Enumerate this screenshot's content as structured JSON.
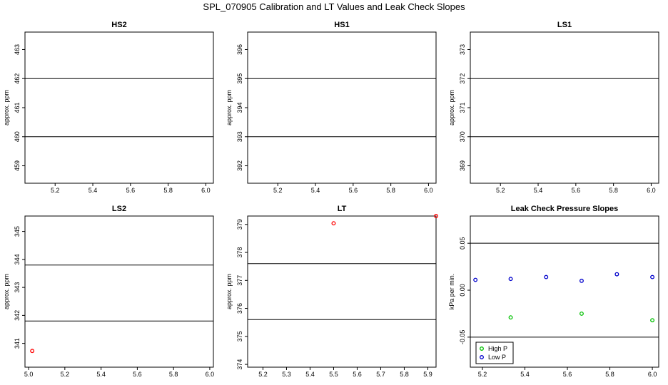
{
  "title": "SPL_070905  Calibration and LT Values and Leak Check Slopes",
  "chart_data": [
    {
      "type": "scatter",
      "title": "HS2",
      "ylabel": "approx. ppm",
      "xlim": [
        5.04,
        6.04
      ],
      "ylim": [
        458.4,
        463.6
      ],
      "xticks": [
        5.2,
        5.4,
        5.6,
        5.8,
        6.0
      ],
      "xtick_labels": [
        "5.2",
        "5.4",
        "5.6",
        "5.8",
        "6.0"
      ],
      "yticks": [
        459,
        460,
        461,
        462,
        463
      ],
      "ytick_labels": [
        "459",
        "460",
        "461",
        "462",
        "463"
      ],
      "hlines": [
        460.0,
        462.0
      ],
      "series": []
    },
    {
      "type": "scatter",
      "title": "HS1",
      "ylabel": "approx. ppm",
      "xlim": [
        5.04,
        6.04
      ],
      "ylim": [
        391.4,
        396.6
      ],
      "xticks": [
        5.2,
        5.4,
        5.6,
        5.8,
        6.0
      ],
      "xtick_labels": [
        "5.2",
        "5.4",
        "5.6",
        "5.8",
        "6.0"
      ],
      "yticks": [
        392,
        393,
        394,
        395,
        396
      ],
      "ytick_labels": [
        "392",
        "393",
        "394",
        "395",
        "396"
      ],
      "hlines": [
        393.0,
        395.0
      ],
      "series": []
    },
    {
      "type": "scatter",
      "title": "LS1",
      "ylabel": "approx. ppm",
      "xlim": [
        5.04,
        6.04
      ],
      "ylim": [
        368.4,
        373.6
      ],
      "xticks": [
        5.2,
        5.4,
        5.6,
        5.8,
        6.0
      ],
      "xtick_labels": [
        "5.2",
        "5.4",
        "5.6",
        "5.8",
        "6.0"
      ],
      "yticks": [
        369,
        370,
        371,
        372,
        373
      ],
      "ytick_labels": [
        "369",
        "370",
        "371",
        "372",
        "373"
      ],
      "hlines": [
        370.0,
        372.0
      ],
      "series": []
    },
    {
      "type": "scatter",
      "title": "LS2",
      "ylabel": "approx. ppm",
      "xlim": [
        4.98,
        6.02
      ],
      "ylim": [
        340.15,
        345.55
      ],
      "xticks": [
        5.0,
        5.2,
        5.4,
        5.6,
        5.8,
        6.0
      ],
      "xtick_labels": [
        "5.0",
        "5.2",
        "5.4",
        "5.6",
        "5.8",
        "6.0"
      ],
      "yticks": [
        341,
        342,
        343,
        344,
        345
      ],
      "ytick_labels": [
        "341",
        "342",
        "343",
        "344",
        "345"
      ],
      "hlines": [
        341.8,
        343.8
      ],
      "series": [
        {
          "color": "#ff0000",
          "points": [
            [
              5.02,
              340.73
            ]
          ]
        }
      ]
    },
    {
      "type": "scatter",
      "title": "LT",
      "ylabel": "approx. ppm",
      "xlim": [
        5.135,
        5.935
      ],
      "ylim": [
        373.9,
        379.3
      ],
      "xticks": [
        5.2,
        5.3,
        5.4,
        5.5,
        5.6,
        5.7,
        5.8,
        5.9
      ],
      "xtick_labels": [
        "5.2",
        "5.3",
        "5.4",
        "5.5",
        "5.6",
        "5.7",
        "5.8",
        "5.9"
      ],
      "yticks": [
        374,
        375,
        376,
        377,
        378,
        379
      ],
      "ytick_labels": [
        "374",
        "375",
        "376",
        "377",
        "378",
        "379"
      ],
      "hlines": [
        375.6,
        377.6
      ],
      "series": [
        {
          "color": "#ff0000",
          "points": [
            [
              5.5,
              379.04
            ],
            [
              5.935,
              379.3
            ]
          ]
        }
      ]
    },
    {
      "type": "scatter",
      "title": "Leak Check Pressure Slopes",
      "ylabel": "kPa per min.",
      "xlim": [
        5.143,
        6.03
      ],
      "ylim": [
        -0.082,
        0.079
      ],
      "xticks": [
        5.2,
        5.4,
        5.6,
        5.8,
        6.0
      ],
      "xtick_labels": [
        "5.2",
        "5.4",
        "5.6",
        "5.8",
        "6.0"
      ],
      "yticks": [
        -0.05,
        0.0,
        0.05
      ],
      "ytick_labels": [
        "-0.05",
        "0.00",
        "0.05"
      ],
      "hlines": [
        -0.05,
        0.05
      ],
      "legend": "bottom-left",
      "series": [
        {
          "name": "High P",
          "color": "#00c000",
          "points": [
            [
              5.333,
              -0.029
            ],
            [
              5.667,
              -0.025
            ],
            [
              6.0,
              -0.032
            ]
          ]
        },
        {
          "name": "Low P",
          "color": "#0000cc",
          "points": [
            [
              5.167,
              0.011
            ],
            [
              5.333,
              0.012
            ],
            [
              5.5,
              0.014
            ],
            [
              5.667,
              0.01
            ],
            [
              5.833,
              0.017
            ],
            [
              6.0,
              0.014
            ]
          ]
        }
      ]
    }
  ]
}
